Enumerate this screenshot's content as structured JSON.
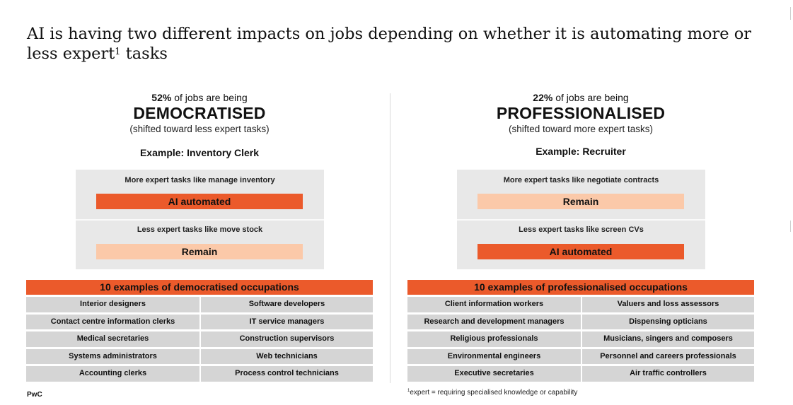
{
  "title": {
    "before_sup": "AI is having two different impacts on jobs depending on whether it is automating more or less expert",
    "sup": "1",
    "after_sup": " tasks"
  },
  "left": {
    "percent": "52%",
    "lead_rest": " of jobs are being",
    "headline": "DEMOCRATISED",
    "subtitle": "(shifted toward less expert tasks)",
    "example": "Example: Inventory Clerk",
    "task_top_label": "More expert tasks like manage inventory",
    "task_top_bar": "AI automated",
    "task_bottom_label": "Less expert tasks like move stock",
    "task_bottom_bar": "Remain",
    "occupations_header": "10 examples of democratised occupations",
    "occupations": [
      "Interior designers",
      "Software developers",
      "Contact centre information clerks",
      "IT service managers",
      "Medical secretaries",
      "Construction supervisors",
      "Systems administrators",
      "Web technicians",
      "Accounting clerks",
      "Process control technicians"
    ]
  },
  "right": {
    "percent": "22%",
    "lead_rest": " of jobs are being",
    "headline": "PROFESSIONALISED",
    "subtitle": "(shifted toward more expert tasks)",
    "example": "Example: Recruiter",
    "task_top_label": "More expert tasks like negotiate contracts",
    "task_top_bar": "Remain",
    "task_bottom_label": "Less expert tasks like screen CVs",
    "task_bottom_bar": "AI automated",
    "occupations_header": "10 examples of professionalised occupations",
    "occupations": [
      "Client information workers",
      "Valuers and loss assessors",
      "Research and development managers",
      "Dispensing opticians",
      "Religious professionals",
      "Musicians, singers and composers",
      "Environmental engineers",
      "Personnel and careers professionals",
      "Executive secretaries",
      "Air traffic controllers"
    ]
  },
  "footer": {
    "brand": "PwC",
    "footnote_sup": "1",
    "footnote_text": "expert = requiring specialised knowledge or capability"
  },
  "colors": {
    "automated": "#eb5a2b",
    "remain": "#fbc9a9",
    "task_box": "#e8e8e8",
    "occupation_cell": "#d5d5d5"
  }
}
